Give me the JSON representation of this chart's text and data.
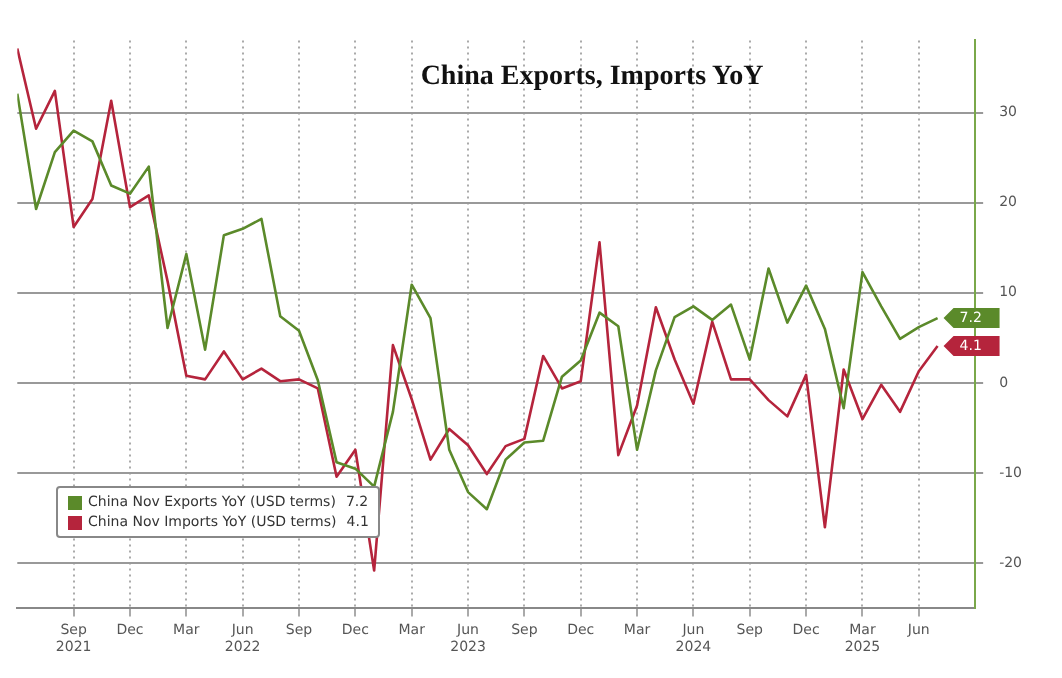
{
  "chart_data": {
    "type": "line",
    "title": "China Exports, Imports YoY",
    "x": [
      "2021-06",
      "2021-07",
      "2021-08",
      "2021-09",
      "2021-10",
      "2021-11",
      "2021-12",
      "2022-01",
      "2022-02",
      "2022-03",
      "2022-04",
      "2022-05",
      "2022-06",
      "2022-07",
      "2022-08",
      "2022-09",
      "2022-10",
      "2022-11",
      "2022-12",
      "2023-01",
      "2023-02",
      "2023-03",
      "2023-04",
      "2023-05",
      "2023-06",
      "2023-07",
      "2023-08",
      "2023-09",
      "2023-10",
      "2023-11",
      "2023-12",
      "2024-01",
      "2024-02",
      "2024-03",
      "2024-04",
      "2024-05",
      "2024-06",
      "2024-07",
      "2024-08",
      "2024-09",
      "2024-10",
      "2024-11",
      "2024-12",
      "2025-01",
      "2025-02",
      "2025-03",
      "2025-04",
      "2025-05",
      "2025-06",
      "2025-07"
    ],
    "series": [
      {
        "name": "China Nov Exports YoY (USD terms)",
        "color": "#5b8a2a",
        "values": [
          32.1,
          19.3,
          25.6,
          28.0,
          26.8,
          21.9,
          21.0,
          24.0,
          6.1,
          14.3,
          3.7,
          16.4,
          17.1,
          18.2,
          7.4,
          5.8,
          0.3,
          -8.8,
          -9.5,
          -11.5,
          -3.2,
          10.9,
          7.2,
          -7.4,
          -12.1,
          -14.0,
          -8.5,
          -6.6,
          -6.4,
          0.7,
          2.5,
          7.8,
          6.3,
          -7.4,
          1.4,
          7.3,
          8.5,
          7.0,
          8.7,
          2.6,
          12.7,
          6.7,
          10.8,
          6.0,
          -2.8,
          12.3,
          8.5,
          4.9,
          6.2,
          7.2
        ],
        "value_labels": [
          null,
          null,
          null,
          null,
          null,
          null,
          null,
          null,
          null,
          null,
          null,
          null,
          null,
          null,
          null,
          null,
          null,
          null,
          null,
          null,
          null,
          null,
          null,
          null,
          null,
          null,
          null,
          null,
          null,
          null,
          null,
          null,
          null,
          null,
          null,
          null,
          null,
          null,
          null,
          null,
          null,
          null,
          null,
          null,
          null,
          null,
          null,
          null,
          null,
          "7.2"
        ]
      },
      {
        "name": "China Nov Imports YoY (USD terms)",
        "color": "#b5243c",
        "values": [
          37.1,
          28.2,
          32.4,
          17.3,
          20.4,
          31.3,
          19.5,
          20.8,
          11.3,
          0.8,
          0.4,
          3.5,
          0.4,
          1.6,
          0.2,
          0.4,
          -0.6,
          -10.4,
          -7.4,
          -20.8,
          4.2,
          -1.8,
          -8.5,
          -5.1,
          -6.9,
          -10.1,
          -7.0,
          -6.2,
          3.0,
          -0.6,
          0.2,
          15.6,
          -8.0,
          -2.5,
          8.4,
          2.6,
          -2.3,
          6.8,
          0.4,
          0.4,
          -1.9,
          -3.7,
          0.9,
          -16.0,
          1.5,
          -4.0,
          -0.2,
          -3.2,
          1.3,
          4.1
        ],
        "value_labels": [
          null,
          null,
          null,
          null,
          null,
          null,
          null,
          null,
          null,
          null,
          null,
          null,
          null,
          null,
          null,
          null,
          null,
          null,
          null,
          null,
          null,
          null,
          null,
          null,
          null,
          null,
          null,
          null,
          null,
          null,
          null,
          null,
          null,
          null,
          null,
          null,
          null,
          null,
          null,
          null,
          null,
          null,
          null,
          null,
          null,
          null,
          null,
          null,
          null,
          "4.1"
        ]
      }
    ],
    "xlim": [
      "2021-06",
      "2025-09"
    ],
    "xticks": [
      {
        "value": "2021-09",
        "label": "Sep 2021"
      },
      {
        "value": "2021-12",
        "label": "Dec"
      },
      {
        "value": "2022-03",
        "label": "Mar"
      },
      {
        "value": "2022-06",
        "label": "Jun 2022"
      },
      {
        "value": "2022-09",
        "label": "Sep"
      },
      {
        "value": "2022-12",
        "label": "Dec"
      },
      {
        "value": "2023-03",
        "label": "Mar"
      },
      {
        "value": "2023-06",
        "label": "Jun 2023"
      },
      {
        "value": "2023-09",
        "label": "Sep"
      },
      {
        "value": "2023-12",
        "label": "Dec"
      },
      {
        "value": "2024-03",
        "label": "Mar"
      },
      {
        "value": "2024-06",
        "label": "Jun 2024"
      },
      {
        "value": "2024-09",
        "label": "Sep"
      },
      {
        "value": "2024-12",
        "label": "Dec"
      },
      {
        "value": "2025-03",
        "label": "Mar 2025"
      },
      {
        "value": "2025-06",
        "label": "Jun"
      }
    ],
    "ylim": [
      -25,
      38
    ],
    "yticks": [
      -20,
      -10,
      0,
      10,
      20,
      30
    ],
    "grid": true,
    "legend": "bottom left",
    "marker": "none",
    "line_style": "solid"
  }
}
